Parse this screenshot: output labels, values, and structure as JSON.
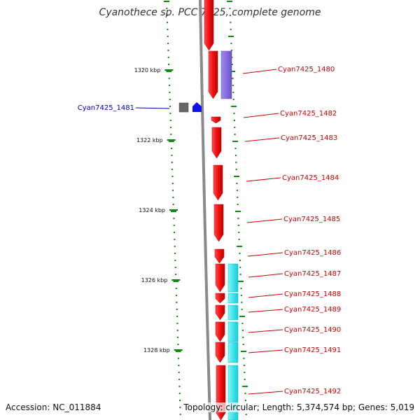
{
  "title": "Cyanothece sp. PCC 7425, complete genome",
  "footer": {
    "accession": "Accession: NC_011884",
    "summary": "Topology: circular; Length: 5,374,574 bp; Genes: 5,019"
  },
  "colors": {
    "cds_red": "#ee1111",
    "cog_purple": "#8a6fdc",
    "cog_cyan": "#22e5ee",
    "rna_grey": "#666666",
    "rna_blue": "#1111ee",
    "tick_green": "#118811",
    "label_red": "#cc0000",
    "label_blue": "#0000aa",
    "backbone": "#8a8a8a"
  },
  "scale_labels": [
    {
      "text": "1320 kbp",
      "pos": 1320
    },
    {
      "text": "1322 kbp",
      "pos": 1322
    },
    {
      "text": "1324 kbp",
      "pos": 1324
    },
    {
      "text": "1326 kbp",
      "pos": 1326
    },
    {
      "text": "1328 kbp",
      "pos": 1328
    }
  ],
  "genes": [
    {
      "name": "Cyan7425_1480",
      "side": "right"
    },
    {
      "name": "Cyan7425_1481",
      "side": "left"
    },
    {
      "name": "Cyan7425_1482",
      "side": "right"
    },
    {
      "name": "Cyan7425_1483",
      "side": "right"
    },
    {
      "name": "Cyan7425_1484",
      "side": "right"
    },
    {
      "name": "Cyan7425_1485",
      "side": "right"
    },
    {
      "name": "Cyan7425_1486",
      "side": "right"
    },
    {
      "name": "Cyan7425_1487",
      "side": "right"
    },
    {
      "name": "Cyan7425_1488",
      "side": "right"
    },
    {
      "name": "Cyan7425_1489",
      "side": "right"
    },
    {
      "name": "Cyan7425_1490",
      "side": "right"
    },
    {
      "name": "Cyan7425_1491",
      "side": "right"
    },
    {
      "name": "Cyan7425_1492",
      "side": "right"
    }
  ]
}
